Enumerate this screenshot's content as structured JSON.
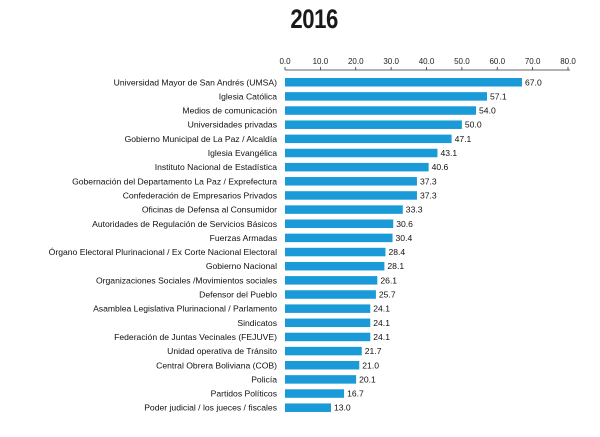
{
  "chart_data": {
    "type": "bar",
    "orientation": "horizontal",
    "title": "2016",
    "xlabel": "",
    "ylabel": "",
    "xlim": [
      0,
      80
    ],
    "ticks": [
      "0.0",
      "10.0",
      "20.0",
      "30.0",
      "40.0",
      "50.0",
      "60.0",
      "70.0",
      "80.0"
    ],
    "bar_color": "#1a9ad6",
    "categories": [
      "Universidad Mayor de San Andrés (UMSA)",
      "Iglesia Católica",
      "Medios de comunicación",
      "Universidades privadas",
      "Gobierno Municipal de La Paz / Alcaldía",
      "Iglesia Evangélica",
      "Instituto Nacional de Estadística",
      "Gobernación del Departamento La Paz / Exprefectura",
      "Confederación de Empresarios Privados",
      "Oficinas de Defensa al Consumidor",
      "Autoridades de Regulación de Servicios Básicos",
      "Fuerzas Armadas",
      "Órgano Electoral Plurinacional / Ex Corte Nacional Electoral",
      "Gobierno Nacional",
      "Organizaciones Sociales /Movimientos sociales",
      "Defensor del Pueblo",
      "Asamblea Legislativa Plurinacional / Parlamento",
      "Sindicatos",
      "Federación de Juntas Vecinales (FEJUVE)",
      "Unidad operativa de Tránsito",
      "Central Obrera Boliviana (COB)",
      "Policía",
      "Partidos Políticos",
      "Poder judicial / los jueces / fiscales"
    ],
    "values": [
      67.0,
      57.1,
      54.0,
      50.0,
      47.1,
      43.1,
      40.6,
      37.3,
      37.3,
      33.3,
      30.6,
      30.4,
      28.4,
      28.1,
      26.1,
      25.7,
      24.1,
      24.1,
      24.1,
      21.7,
      21.0,
      20.1,
      16.7,
      13.0
    ],
    "value_labels": [
      "67.0",
      "57.1",
      "54.0",
      "50.0",
      "47.1",
      "43.1",
      "40.6",
      "37.3",
      "37.3",
      "33.3",
      "30.6",
      "30.4",
      "28.4",
      "28.1",
      "26.1",
      "25.7",
      "24.1",
      "24.1",
      "24.1",
      "21.7",
      "21.0",
      "20.1",
      "16.7",
      "13.0"
    ]
  }
}
